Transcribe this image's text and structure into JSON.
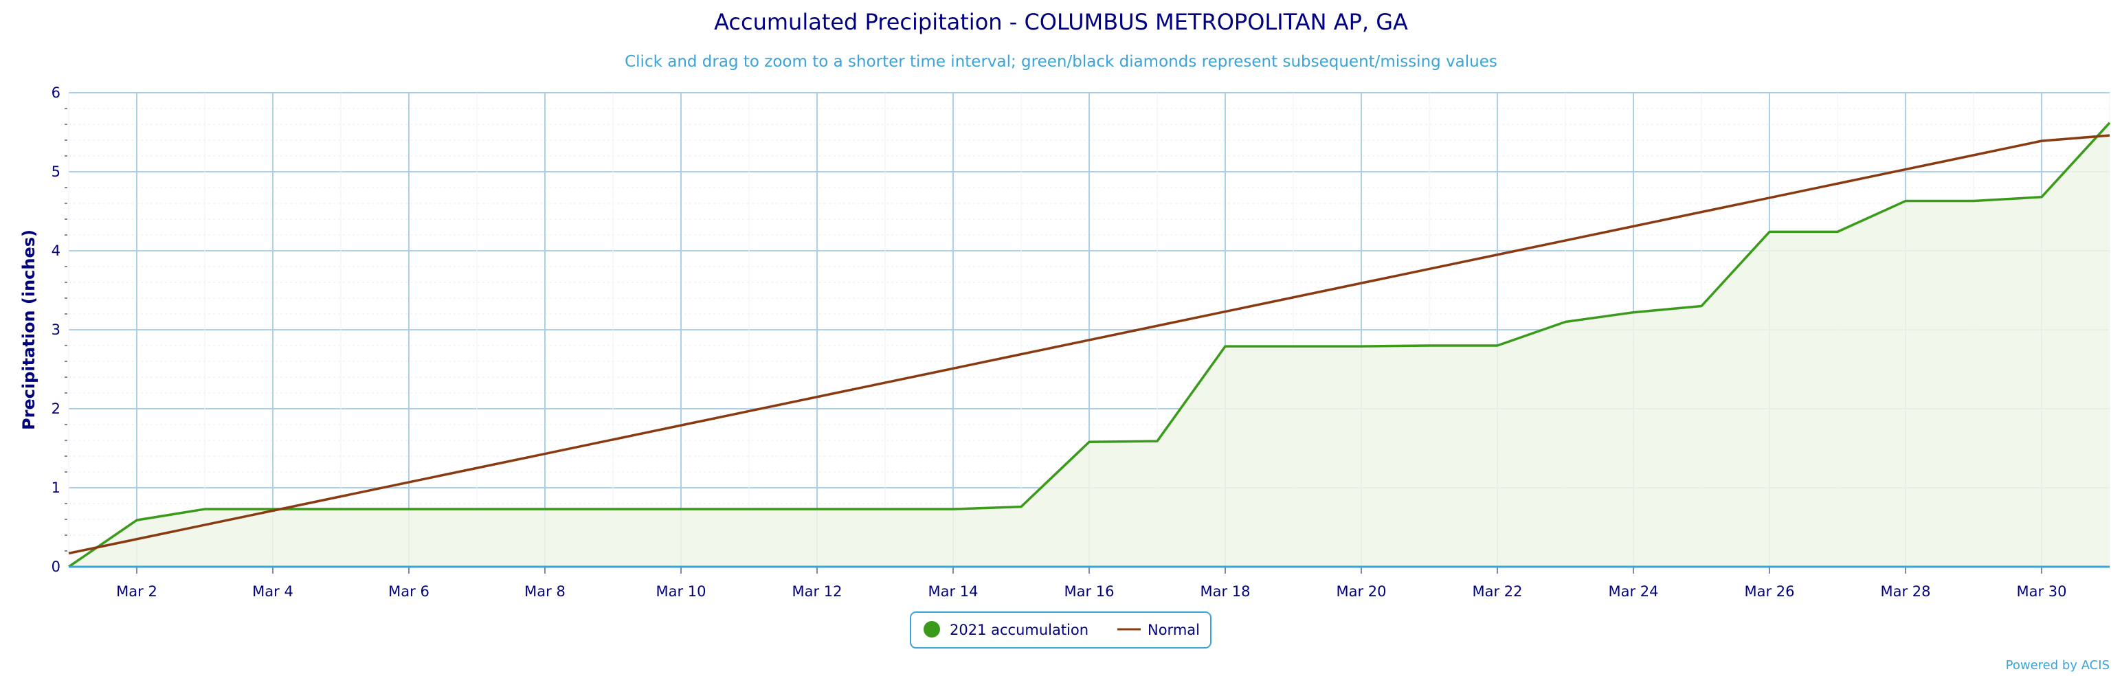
{
  "chart_data": {
    "type": "area",
    "title": "Accumulated Precipitation - COLUMBUS METROPOLITAN AP, GA",
    "subtitle": "Click and drag to zoom to a shorter time interval; green/black diamonds represent subsequent/missing values",
    "xlabel": "",
    "ylabel": "Precipitation (inches)",
    "ylim": [
      0,
      6
    ],
    "yticks": [
      "0",
      "1",
      "2",
      "3",
      "4",
      "5",
      "6"
    ],
    "xlim": [
      1,
      31
    ],
    "xticks": [
      {
        "day": 2,
        "label": "Mar 2"
      },
      {
        "day": 4,
        "label": "Mar 4"
      },
      {
        "day": 6,
        "label": "Mar 6"
      },
      {
        "day": 8,
        "label": "Mar 8"
      },
      {
        "day": 10,
        "label": "Mar 10"
      },
      {
        "day": 12,
        "label": "Mar 12"
      },
      {
        "day": 14,
        "label": "Mar 14"
      },
      {
        "day": 16,
        "label": "Mar 16"
      },
      {
        "day": 18,
        "label": "Mar 18"
      },
      {
        "day": 20,
        "label": "Mar 20"
      },
      {
        "day": 22,
        "label": "Mar 22"
      },
      {
        "day": 24,
        "label": "Mar 24"
      },
      {
        "day": 26,
        "label": "Mar 26"
      },
      {
        "day": 28,
        "label": "Mar 28"
      },
      {
        "day": 30,
        "label": "Mar 30"
      }
    ],
    "grid": true,
    "legend_position": "bottom-center",
    "x": [
      1,
      2,
      3,
      4,
      5,
      6,
      7,
      8,
      9,
      10,
      11,
      12,
      13,
      14,
      15,
      16,
      17,
      18,
      19,
      20,
      21,
      22,
      23,
      24,
      25,
      26,
      27,
      28,
      29,
      30,
      31
    ],
    "series": [
      {
        "name": "2021 accumulation",
        "color": "#3a9a1a",
        "fill": "#eef6e8",
        "values": [
          0.0,
          0.59,
          0.73,
          0.73,
          0.73,
          0.73,
          0.73,
          0.73,
          0.73,
          0.73,
          0.73,
          0.73,
          0.73,
          0.73,
          0.76,
          1.58,
          1.59,
          2.79,
          2.79,
          2.79,
          2.8,
          2.8,
          3.1,
          3.22,
          3.3,
          4.24,
          4.24,
          4.63,
          4.63,
          4.68,
          5.62
        ]
      },
      {
        "name": "Normal",
        "color": "#8a3a10",
        "values": [
          0.17,
          0.35,
          0.53,
          0.71,
          0.89,
          1.07,
          1.25,
          1.43,
          1.61,
          1.79,
          1.97,
          2.15,
          2.33,
          2.51,
          2.69,
          2.87,
          3.05,
          3.23,
          3.41,
          3.59,
          3.77,
          3.95,
          4.13,
          4.31,
          4.49,
          4.67,
          4.85,
          5.03,
          5.21,
          5.39,
          5.46
        ]
      }
    ],
    "credit": "Powered by ACIS"
  },
  "colors": {
    "text": "#000080",
    "accent": "#3aa3d8",
    "grid": "#add0ea",
    "legend_border": "#3aa3d8"
  }
}
